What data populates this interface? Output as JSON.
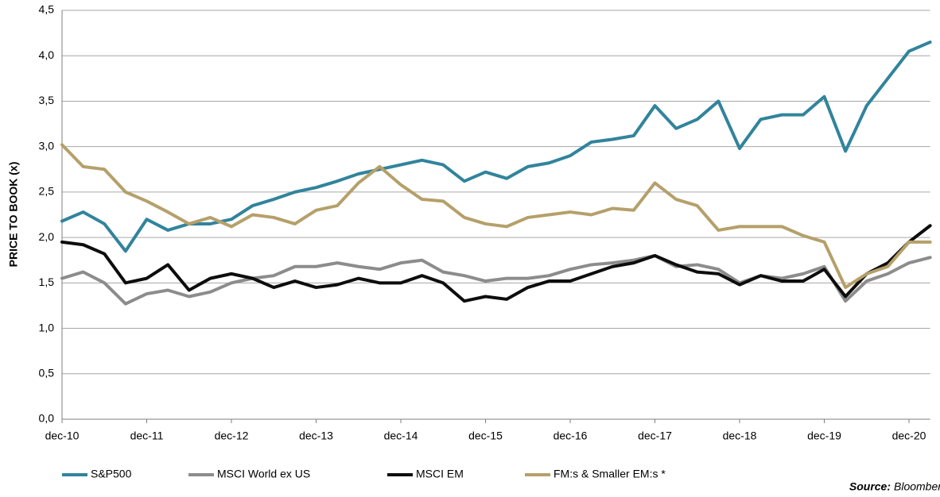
{
  "chart_data": {
    "type": "line",
    "y_axis_label": "PRICE TO BOOK (x)",
    "source_label": "Source:",
    "source": "Bloomberg, Tundra Fonder",
    "categories": [
      "dec-10",
      null,
      null,
      null,
      "dec-11",
      null,
      null,
      null,
      "dec-12",
      null,
      null,
      null,
      "dec-13",
      null,
      null,
      null,
      "dec-14",
      null,
      null,
      null,
      "dec-15",
      null,
      null,
      null,
      "dec-16",
      null,
      null,
      null,
      "dec-17",
      null,
      null,
      null,
      "dec-18",
      null,
      null,
      null,
      "dec-19",
      null,
      null,
      null,
      "dec-20",
      null
    ],
    "ylim": [
      0,
      4.5
    ],
    "yticks": [
      {
        "value": 0,
        "label": "0,0"
      },
      {
        "value": 0.5,
        "label": "0,5"
      },
      {
        "value": 1,
        "label": "1,0"
      },
      {
        "value": 1.5,
        "label": "1,5"
      },
      {
        "value": 2,
        "label": "2,0"
      },
      {
        "value": 2.5,
        "label": "2,5"
      },
      {
        "value": 3,
        "label": "3,0"
      },
      {
        "value": 3.5,
        "label": "3,5"
      },
      {
        "value": 4,
        "label": "4,0"
      },
      {
        "value": 4.5,
        "label": "4,5"
      }
    ],
    "grid": true,
    "legend": "bottom",
    "series": [
      {
        "name": "S&P500",
        "color": "#31849b",
        "values": [
          2.18,
          2.28,
          2.15,
          1.85,
          2.2,
          2.08,
          2.15,
          2.15,
          2.2,
          2.35,
          2.42,
          2.5,
          2.55,
          2.62,
          2.7,
          2.75,
          2.8,
          2.85,
          2.8,
          2.62,
          2.72,
          2.65,
          2.78,
          2.82,
          2.9,
          3.05,
          3.08,
          3.12,
          3.45,
          3.2,
          3.3,
          3.5,
          2.98,
          3.3,
          3.35,
          3.35,
          3.55,
          2.95,
          3.45,
          3.75,
          4.05,
          4.15
        ]
      },
      {
        "name": "MSCI World ex US",
        "color": "#8c8c8c",
        "values": [
          1.55,
          1.62,
          1.5,
          1.27,
          1.38,
          1.42,
          1.35,
          1.4,
          1.5,
          1.55,
          1.58,
          1.68,
          1.68,
          1.72,
          1.68,
          1.65,
          1.72,
          1.75,
          1.62,
          1.58,
          1.52,
          1.55,
          1.55,
          1.58,
          1.65,
          1.7,
          1.72,
          1.75,
          1.8,
          1.68,
          1.7,
          1.65,
          1.5,
          1.58,
          1.55,
          1.6,
          1.68,
          1.3,
          1.52,
          1.6,
          1.72,
          1.78
        ]
      },
      {
        "name": "MSCI EM",
        "color": "#0d0d0d",
        "values": [
          1.95,
          1.92,
          1.82,
          1.5,
          1.55,
          1.7,
          1.42,
          1.55,
          1.6,
          1.55,
          1.45,
          1.52,
          1.45,
          1.48,
          1.55,
          1.5,
          1.5,
          1.58,
          1.5,
          1.3,
          1.35,
          1.32,
          1.45,
          1.52,
          1.52,
          1.6,
          1.68,
          1.72,
          1.8,
          1.7,
          1.62,
          1.6,
          1.48,
          1.58,
          1.52,
          1.52,
          1.65,
          1.35,
          1.6,
          1.72,
          1.95,
          2.13
        ]
      },
      {
        "name": "FM:s & Smaller EM:s *",
        "color": "#b5a06a",
        "values": [
          3.02,
          2.78,
          2.75,
          2.5,
          2.4,
          2.28,
          2.15,
          2.22,
          2.12,
          2.25,
          2.22,
          2.15,
          2.3,
          2.35,
          2.6,
          2.78,
          2.58,
          2.42,
          2.4,
          2.22,
          2.15,
          2.12,
          2.22,
          2.25,
          2.28,
          2.25,
          2.32,
          2.3,
          2.6,
          2.42,
          2.35,
          2.08,
          2.12,
          2.12,
          2.12,
          2.02,
          1.95,
          1.45,
          1.6,
          1.68,
          1.95,
          1.95
        ]
      }
    ]
  }
}
